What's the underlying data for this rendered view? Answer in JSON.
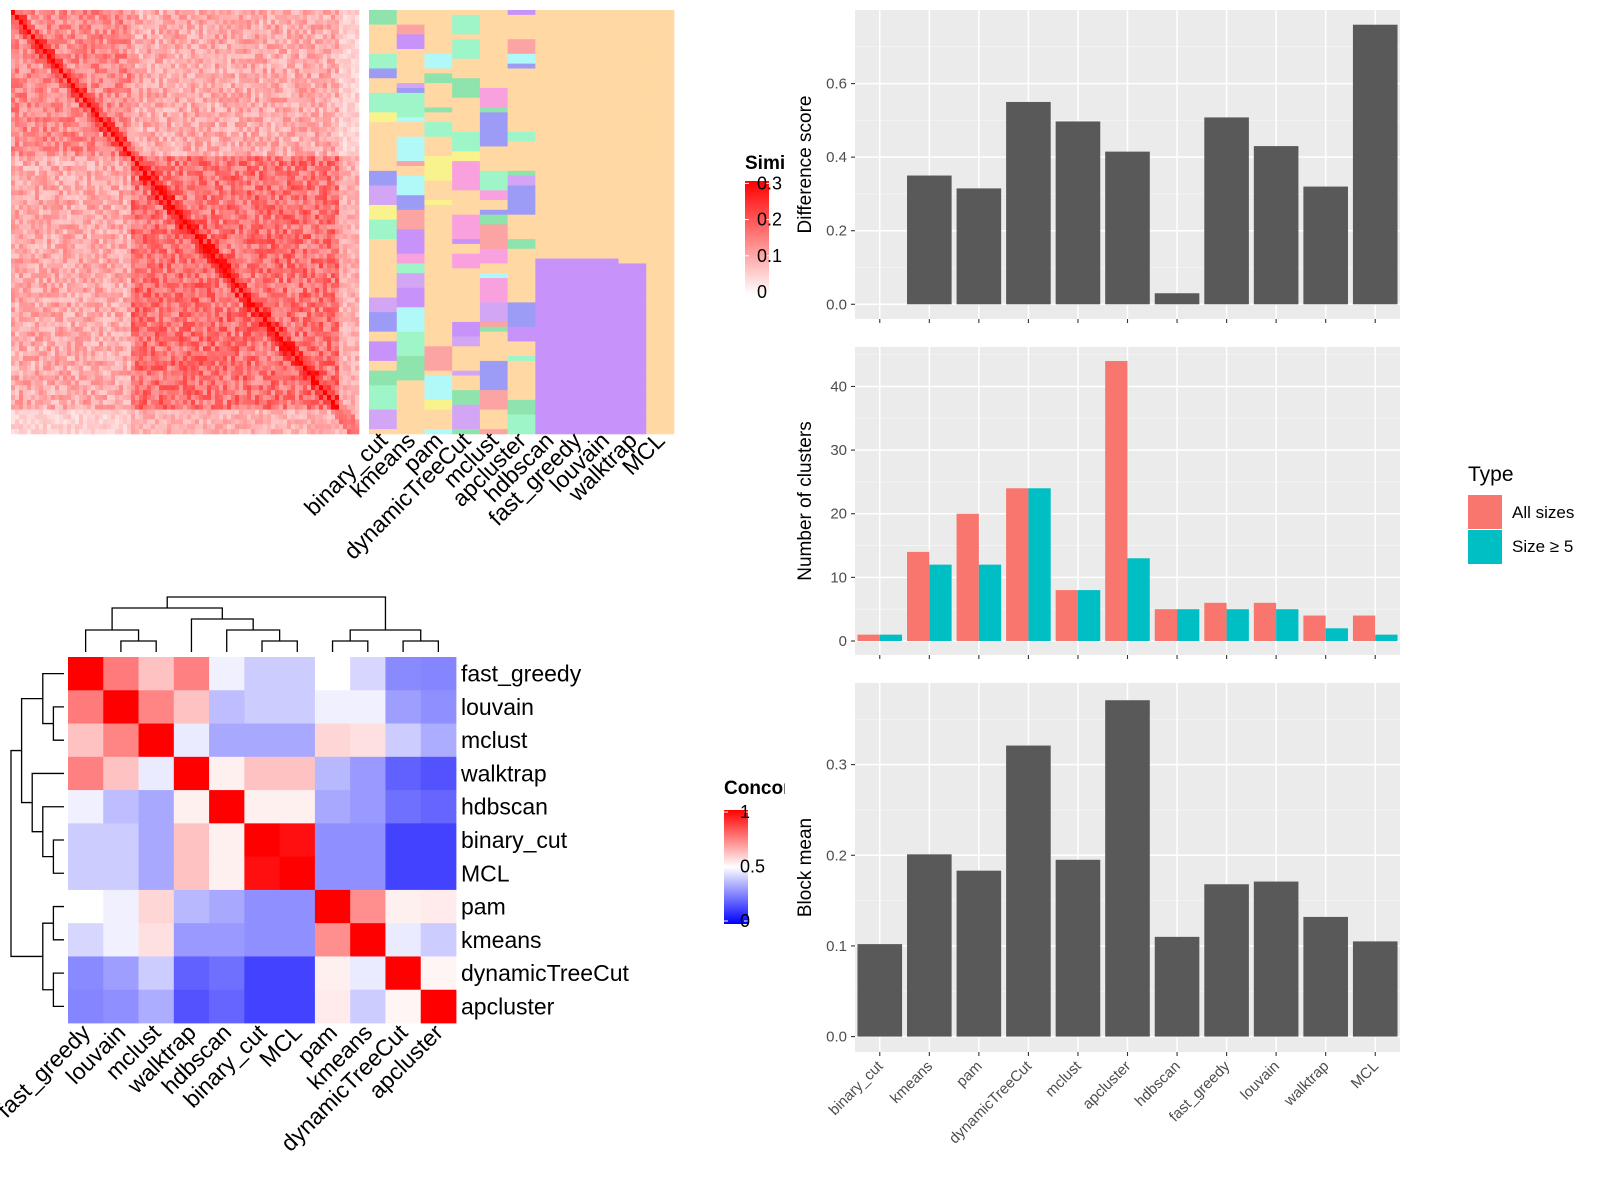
{
  "chart_data": [
    {
      "type": "heatmap",
      "name": "similarity-heatmap",
      "legend": {
        "title": "Similarity",
        "title_visible": "Simila",
        "ticks": [
          "0",
          "0.1",
          "0.2",
          "0.3"
        ],
        "colors": [
          "#FFFFFF",
          "#FF0000"
        ]
      },
      "column_labels": [
        "binary_cut",
        "kmeans",
        "pam",
        "dynamicTreeCut",
        "mclust",
        "apcluster",
        "hdbscan",
        "fast_greedy",
        "louvain",
        "walktrap",
        "MCL"
      ],
      "block_ranges": [
        [
          0,
          0.35
        ],
        [
          0.35,
          1.0
        ]
      ],
      "assignment_palette": [
        "#FFD8A3",
        "#C792F9",
        "#9EF5C8",
        "#F9A1DE",
        "#B0F9F8",
        "#F8F38C",
        "#9C9BF5",
        "#FCA3A3",
        "#8FE3AC",
        "#D3A5F5"
      ]
    },
    {
      "type": "heatmap",
      "name": "concordance-heatmap",
      "legend": {
        "title": "Concordance",
        "title_visible": "Concord",
        "ticks": [
          "0",
          "0.5",
          "1"
        ],
        "colors": [
          "#0000FF",
          "#FFFFFF",
          "#FF0000"
        ]
      },
      "labels": [
        "fast_greedy",
        "louvain",
        "mclust",
        "walktrap",
        "hdbscan",
        "binary_cut",
        "MCL",
        "pam",
        "kmeans",
        "dynamicTreeCut",
        "apcluster"
      ],
      "values": [
        [
          1.0,
          0.76,
          0.62,
          0.75,
          0.47,
          0.4,
          0.4,
          0.5,
          0.42,
          0.27,
          0.26
        ],
        [
          0.76,
          1.0,
          0.74,
          0.62,
          0.37,
          0.4,
          0.4,
          0.47,
          0.47,
          0.31,
          0.28
        ],
        [
          0.62,
          0.74,
          1.0,
          0.46,
          0.33,
          0.33,
          0.33,
          0.58,
          0.56,
          0.4,
          0.34
        ],
        [
          0.75,
          0.62,
          0.46,
          1.0,
          0.53,
          0.62,
          0.62,
          0.36,
          0.3,
          0.19,
          0.16
        ],
        [
          0.47,
          0.37,
          0.33,
          0.53,
          1.0,
          0.53,
          0.53,
          0.33,
          0.3,
          0.22,
          0.2
        ],
        [
          0.4,
          0.4,
          0.33,
          0.62,
          0.53,
          1.0,
          0.97,
          0.28,
          0.28,
          0.13,
          0.13
        ],
        [
          0.4,
          0.4,
          0.33,
          0.62,
          0.53,
          0.97,
          1.0,
          0.28,
          0.28,
          0.13,
          0.13
        ],
        [
          0.5,
          0.47,
          0.58,
          0.36,
          0.33,
          0.28,
          0.28,
          1.0,
          0.72,
          0.53,
          0.54
        ],
        [
          0.42,
          0.47,
          0.56,
          0.3,
          0.3,
          0.28,
          0.28,
          0.72,
          1.0,
          0.46,
          0.4
        ],
        [
          0.27,
          0.31,
          0.4,
          0.19,
          0.22,
          0.13,
          0.13,
          0.53,
          0.46,
          1.0,
          0.52
        ],
        [
          0.26,
          0.28,
          0.34,
          0.16,
          0.2,
          0.13,
          0.13,
          0.54,
          0.4,
          0.52,
          1.0
        ]
      ]
    },
    {
      "type": "bar",
      "name": "difference-score",
      "categories": [
        "binary_cut",
        "kmeans",
        "pam",
        "dynamicTreeCut",
        "mclust",
        "apcluster",
        "hdbscan",
        "fast_greedy",
        "louvain",
        "walktrap",
        "MCL"
      ],
      "values": [
        0.0,
        0.35,
        0.315,
        0.55,
        0.497,
        0.415,
        0.03,
        0.508,
        0.43,
        0.32,
        0.76
      ],
      "ylabel": "Difference score",
      "ylim": [
        -0.04,
        0.8
      ],
      "yticks": [
        "0.0",
        "0.2",
        "0.4",
        "0.6"
      ],
      "ytick_values": [
        0,
        0.2,
        0.4,
        0.6
      ],
      "bar_color": "#595959"
    },
    {
      "type": "bar",
      "name": "number-of-clusters",
      "categories": [
        "binary_cut",
        "kmeans",
        "pam",
        "dynamicTreeCut",
        "mclust",
        "apcluster",
        "hdbscan",
        "fast_greedy",
        "louvain",
        "walktrap",
        "MCL"
      ],
      "series": [
        {
          "name": "All sizes",
          "color": "#F8766D",
          "values": [
            1,
            14,
            20,
            24,
            8,
            44,
            5,
            6,
            6,
            4,
            4
          ]
        },
        {
          "name": "Size ≥ 5",
          "color": "#00BFC4",
          "values": [
            1,
            12,
            12,
            24,
            8,
            13,
            5,
            5,
            5,
            2,
            1
          ]
        }
      ],
      "ylabel": "Number of clusters",
      "ylim": [
        -2.2,
        46.2
      ],
      "yticks": [
        "0",
        "10",
        "20",
        "30",
        "40"
      ],
      "ytick_values": [
        0,
        10,
        20,
        30,
        40
      ],
      "legend": {
        "title": "Type",
        "entries": [
          "All sizes",
          "Size ≥ 5"
        ],
        "position": "right"
      }
    },
    {
      "type": "bar",
      "name": "block-mean",
      "categories": [
        "binary_cut",
        "kmeans",
        "pam",
        "dynamicTreeCut",
        "mclust",
        "apcluster",
        "hdbscan",
        "fast_greedy",
        "louvain",
        "walktrap",
        "MCL"
      ],
      "values": [
        0.102,
        0.201,
        0.183,
        0.321,
        0.195,
        0.371,
        0.11,
        0.168,
        0.171,
        0.132,
        0.105
      ],
      "ylabel": "Block mean",
      "ylim": [
        -0.017,
        0.39
      ],
      "yticks": [
        "0.0",
        "0.1",
        "0.2",
        "0.3"
      ],
      "ytick_values": [
        0,
        0.1,
        0.2,
        0.3
      ],
      "bar_color": "#595959"
    }
  ]
}
